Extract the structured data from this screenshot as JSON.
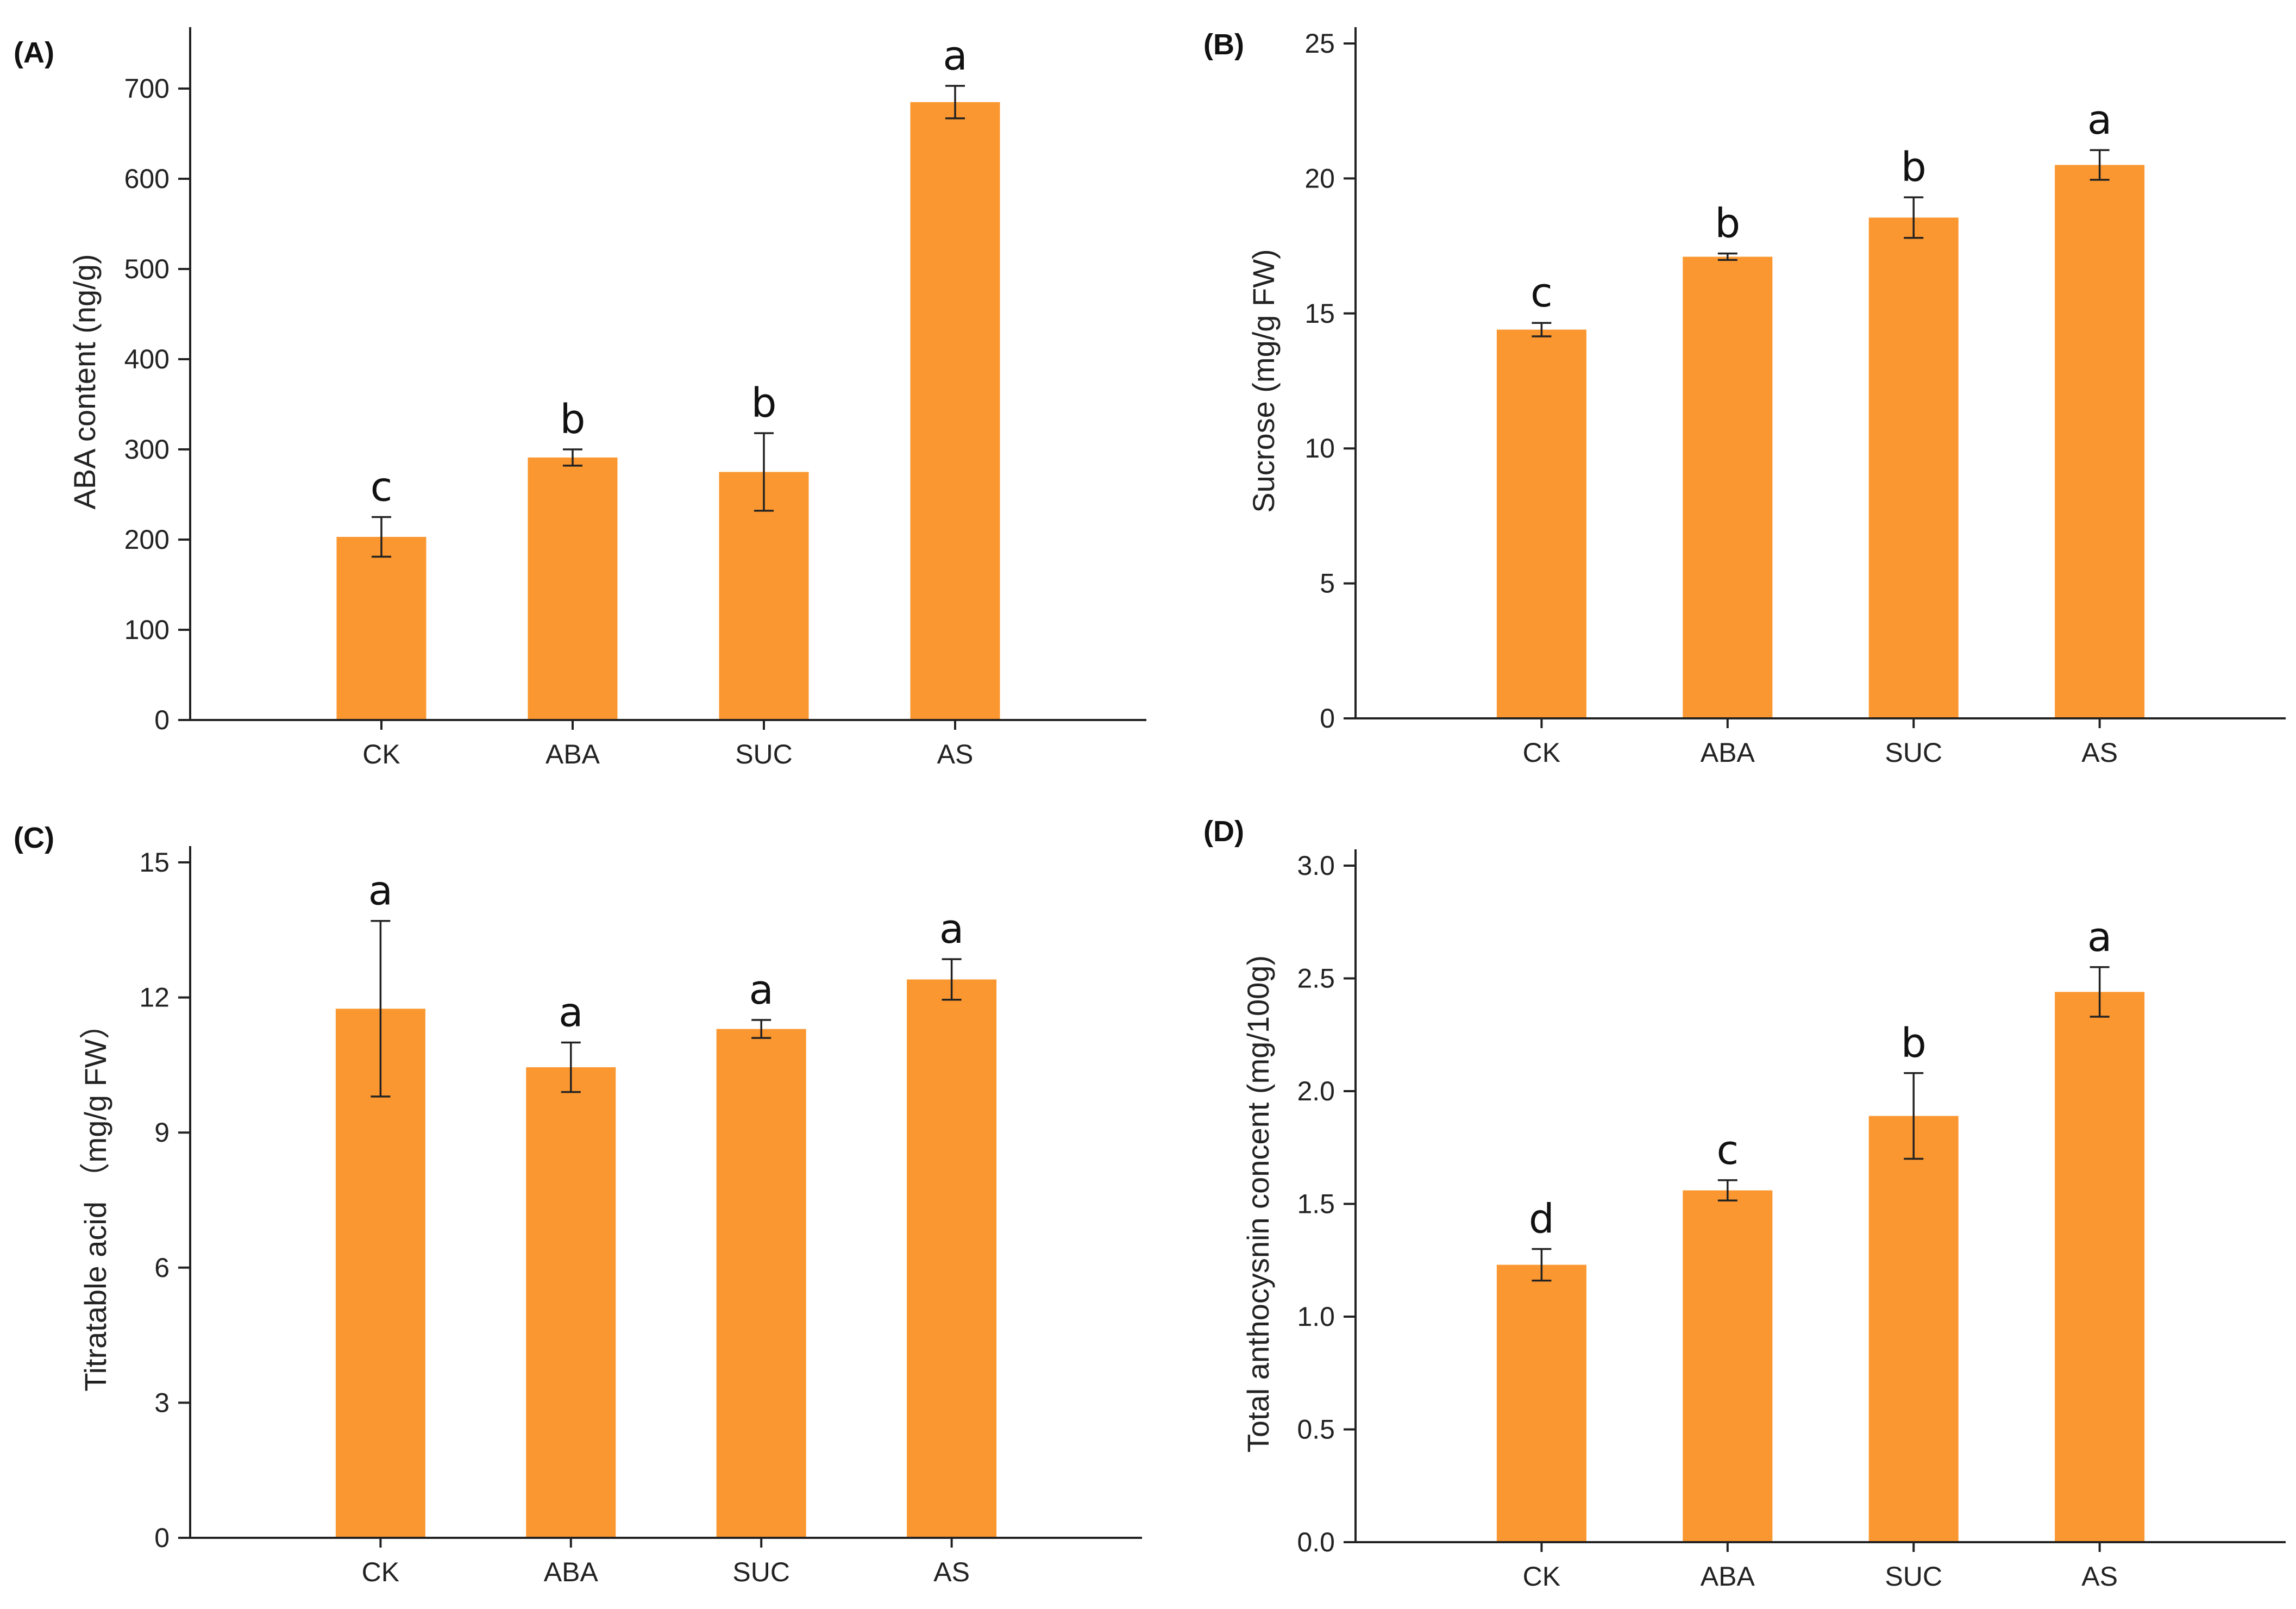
{
  "colors": {
    "bar": "#fb9730",
    "axis": "#222222"
  },
  "chart_data": [
    {
      "type": "bar",
      "panel_label": "(A)",
      "title": "",
      "xlabel": "",
      "ylabel": "ABA content (ng/g)",
      "categories": [
        "CK",
        "ABA",
        "SUC",
        "AS"
      ],
      "values": [
        203,
        291,
        275,
        685
      ],
      "errors": [
        22,
        9,
        43,
        18
      ],
      "significance": [
        "c",
        "b",
        "b",
        "a"
      ],
      "ylim": [
        0,
        750
      ],
      "yticks": [
        0,
        100,
        200,
        300,
        400,
        500,
        600,
        700
      ],
      "ytick_labels": [
        "0",
        "100",
        "200",
        "300",
        "400",
        "500",
        "600",
        "700"
      ]
    },
    {
      "type": "bar",
      "panel_label": "(B)",
      "title": "",
      "xlabel": "",
      "ylabel": "Sucrose (mg/g FW)",
      "categories": [
        "CK",
        "ABA",
        "SUC",
        "AS"
      ],
      "values": [
        14.4,
        17.1,
        18.55,
        20.5
      ],
      "errors": [
        0.25,
        0.12,
        0.75,
        0.55
      ],
      "significance": [
        "c",
        "b",
        "b",
        "a"
      ],
      "ylim": [
        0,
        25
      ],
      "yticks": [
        0,
        5,
        10,
        15,
        20,
        25
      ],
      "ytick_labels": [
        "0",
        "5",
        "10",
        "15",
        "20",
        "25"
      ]
    },
    {
      "type": "bar",
      "panel_label": "(C)",
      "title": "",
      "xlabel": "",
      "ylabel": "Titratable acid （mg/g FW）",
      "categories": [
        "CK",
        "ABA",
        "SUC",
        "AS"
      ],
      "values": [
        11.75,
        10.45,
        11.3,
        12.4
      ],
      "errors": [
        1.95,
        0.55,
        0.2,
        0.45
      ],
      "significance": [
        "a",
        "a",
        "a",
        "a"
      ],
      "ylim": [
        0,
        15
      ],
      "yticks": [
        0,
        3,
        6,
        9,
        12,
        15
      ],
      "ytick_labels": [
        "0",
        "3",
        "6",
        "9",
        "12",
        "15"
      ]
    },
    {
      "type": "bar",
      "panel_label": "(D)",
      "title": "",
      "xlabel": "",
      "ylabel": "Total anthocysnin concent (mg/100g)",
      "categories": [
        "CK",
        "ABA",
        "SUC",
        "AS"
      ],
      "values": [
        1.23,
        1.56,
        1.89,
        2.44
      ],
      "errors": [
        0.07,
        0.045,
        0.19,
        0.11
      ],
      "significance": [
        "d",
        "c",
        "b",
        "a"
      ],
      "ylim": [
        0,
        3.0
      ],
      "yticks": [
        0,
        0.5,
        1.0,
        1.5,
        2.0,
        2.5,
        3.0
      ],
      "ytick_labels": [
        "0.0",
        "0.5",
        "1.0",
        "1.5",
        "2.0",
        "2.5",
        "3.0"
      ]
    }
  ]
}
